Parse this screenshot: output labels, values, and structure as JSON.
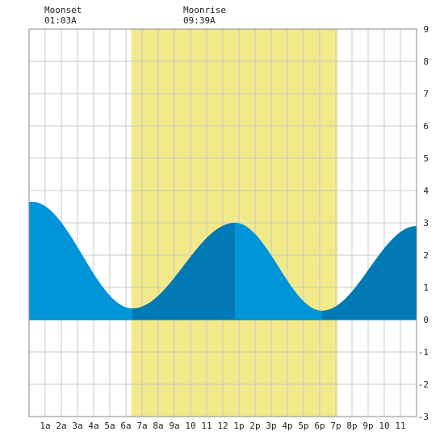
{
  "header": {
    "moonset_label": "Moonset",
    "moonset_time": "01:03A",
    "moonrise_label": "Moonrise",
    "moonrise_time": "09:39A"
  },
  "chart_data": {
    "type": "area",
    "title": "",
    "xlabel": "",
    "ylabel": "",
    "xlim": [
      0,
      24
    ],
    "ylim": [
      -3,
      9
    ],
    "x_tick_labels": [
      "1a",
      "2a",
      "3a",
      "4a",
      "5a",
      "6a",
      "7a",
      "8a",
      "9a",
      "10",
      "11",
      "12",
      "1p",
      "2p",
      "3p",
      "4p",
      "5p",
      "6p",
      "7p",
      "8p",
      "9p",
      "10",
      "11"
    ],
    "y_tick_labels": [
      "9",
      "8",
      "7",
      "6",
      "5",
      "4",
      "3",
      "2",
      "1",
      "0",
      "-1",
      "-2",
      "-3"
    ],
    "daylight_band": {
      "start_hour": 6.33,
      "end_hour": 19.1
    },
    "moonset_hour": 1.05,
    "moonrise_hour": 9.65,
    "extrema": [
      {
        "hour": 0.2,
        "height": 3.65
      },
      {
        "hour": 6.4,
        "height": 0.35
      },
      {
        "hour": 12.75,
        "height": 3.0
      },
      {
        "hour": 18.15,
        "height": 0.28
      },
      {
        "hour": 24.0,
        "height": 2.9
      }
    ],
    "colors": {
      "daylight": "#f2ea8a",
      "tide_light": "#0095d9",
      "tide_dark": "#0079b4",
      "grid": "#c8c8c8",
      "frame": "#888888"
    }
  }
}
